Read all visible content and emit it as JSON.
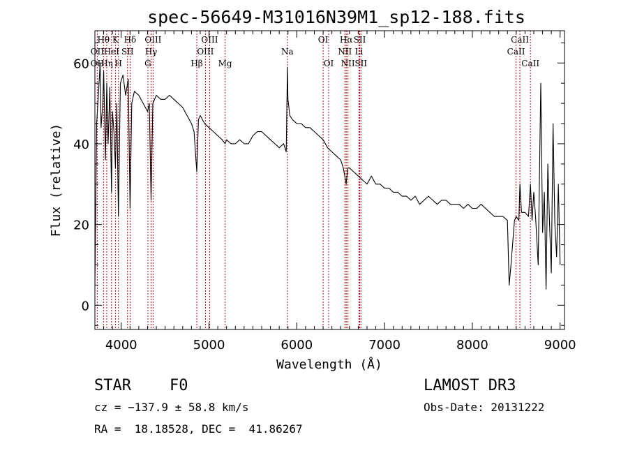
{
  "chart_data": {
    "type": "line",
    "title": "spec-56649-M31016N39M1_sp12-188.fits",
    "xlabel": "Wavelength (Å)",
    "ylabel": "Flux (relative)",
    "xlim": [
      3700,
      9050
    ],
    "ylim": [
      -6,
      68
    ],
    "xticks": [
      4000,
      5000,
      6000,
      7000,
      8000,
      9000
    ],
    "xtick_labels": [
      "4000",
      "5000",
      "6000",
      "7000",
      "8000",
      "9000"
    ],
    "yticks": [
      0,
      20,
      40,
      60
    ],
    "ytick_labels": [
      "0",
      "20",
      "40",
      "60"
    ],
    "grid": false,
    "series": [
      {
        "color": "#000000",
        "x": [
          3700,
          3720,
          3740,
          3760,
          3770,
          3790,
          3800,
          3820,
          3835,
          3850,
          3870,
          3889,
          3900,
          3920,
          3934,
          3950,
          3968,
          3990,
          4020,
          4050,
          4080,
          4101,
          4120,
          4150,
          4200,
          4250,
          4300,
          4320,
          4340,
          4360,
          4400,
          4450,
          4500,
          4550,
          4600,
          4650,
          4700,
          4750,
          4800,
          4830,
          4861,
          4880,
          4900,
          4950,
          5000,
          5050,
          5100,
          5150,
          5183,
          5200,
          5250,
          5300,
          5350,
          5400,
          5450,
          5500,
          5550,
          5600,
          5650,
          5700,
          5750,
          5800,
          5850,
          5880,
          5893,
          5900,
          5920,
          5950,
          6000,
          6050,
          6100,
          6150,
          6200,
          6250,
          6300,
          6350,
          6400,
          6450,
          6500,
          6530,
          6563,
          6580,
          6600,
          6650,
          6700,
          6750,
          6800,
          6850,
          6900,
          6950,
          7000,
          7050,
          7100,
          7150,
          7200,
          7250,
          7300,
          7350,
          7400,
          7450,
          7500,
          7550,
          7600,
          7650,
          7700,
          7750,
          7800,
          7850,
          7900,
          7950,
          8000,
          8050,
          8100,
          8150,
          8200,
          8250,
          8300,
          8350,
          8400,
          8420,
          8440,
          8480,
          8500,
          8530,
          8542,
          8560,
          8600,
          8640,
          8662,
          8680,
          8700,
          8720,
          8750,
          8780,
          8800,
          8820,
          8840,
          8860,
          8880,
          8900,
          8920,
          8940,
          8960,
          8980,
          9000
        ],
        "y": [
          5,
          45,
          52,
          60,
          44,
          50,
          58,
          36,
          55,
          40,
          54,
          28,
          48,
          42,
          34,
          50,
          22,
          55,
          57,
          52,
          56,
          24,
          50,
          53,
          52,
          50,
          48,
          50,
          26,
          50,
          52,
          51,
          51,
          52,
          51,
          50,
          49,
          47,
          45,
          43,
          33,
          46,
          47,
          45,
          44,
          43,
          42,
          41,
          40,
          41,
          40,
          40,
          41,
          40,
          40,
          42,
          43,
          43,
          42,
          41,
          40,
          39,
          40,
          38,
          59,
          51,
          47,
          46,
          45,
          45,
          44,
          44,
          43,
          42,
          41,
          39,
          38,
          37,
          36,
          34,
          30,
          34,
          34,
          33,
          32,
          31,
          30,
          32,
          30,
          30,
          29,
          29,
          28,
          28,
          27,
          27,
          26,
          27,
          25,
          26,
          27,
          26,
          25,
          26,
          26,
          25,
          25,
          25,
          24,
          25,
          24,
          24,
          25,
          24,
          23,
          22,
          22,
          22,
          21,
          5,
          10,
          21,
          22,
          21,
          30,
          23,
          23,
          22,
          30,
          21,
          28,
          22,
          10,
          55,
          18,
          28,
          4,
          35,
          20,
          8,
          45,
          20,
          12,
          30,
          10
        ]
      }
    ],
    "spectral_lines": [
      {
        "label": "Hθ",
        "row": 1,
        "x": 3798
      },
      {
        "label": "K",
        "row": 1,
        "x": 3934
      },
      {
        "label": "Hδ",
        "row": 1,
        "x": 4101
      },
      {
        "label": "OIII",
        "row": 1,
        "x": 4363
      },
      {
        "label": "OIII",
        "row": 1,
        "x": 5007
      },
      {
        "label": "OI",
        "row": 1,
        "x": 6300
      },
      {
        "label": "Hα",
        "row": 1,
        "x": 6563
      },
      {
        "label": "SII",
        "row": 1,
        "x": 6717
      },
      {
        "label": "CaII",
        "row": 1,
        "x": 8542
      },
      {
        "label": "OII",
        "row": 2,
        "x": 3727
      },
      {
        "label": "HeI",
        "row": 2,
        "x": 3889
      },
      {
        "label": "SII",
        "row": 2,
        "x": 4072
      },
      {
        "label": "Hγ",
        "row": 2,
        "x": 4340
      },
      {
        "label": "OIII",
        "row": 2,
        "x": 4959
      },
      {
        "label": "Na",
        "row": 2,
        "x": 5893
      },
      {
        "label": "NII",
        "row": 2,
        "x": 6548
      },
      {
        "label": "Li",
        "row": 2,
        "x": 6708
      },
      {
        "label": "CaII",
        "row": 2,
        "x": 8498
      },
      {
        "label": "OII",
        "row": 3,
        "x": 3727
      },
      {
        "label": "Hη",
        "row": 3,
        "x": 3835
      },
      {
        "label": "H",
        "row": 3,
        "x": 3968
      },
      {
        "label": "G",
        "row": 3,
        "x": 4304
      },
      {
        "label": "Hβ",
        "row": 3,
        "x": 4861
      },
      {
        "label": "Mg",
        "row": 3,
        "x": 5183
      },
      {
        "label": "OI",
        "row": 3,
        "x": 6363
      },
      {
        "label": "NII",
        "row": 3,
        "x": 6583
      },
      {
        "label": "SII",
        "row": 3,
        "x": 6731
      },
      {
        "label": "CaII",
        "row": 3,
        "x": 8662
      }
    ]
  },
  "info": {
    "class": "STAR",
    "subclass": "F0",
    "survey": "LAMOST DR3",
    "cz": "cz = −137.9 ± 58.8 km/s",
    "obs_date": "Obs-Date: 20131222",
    "coords": "RA =  18.18528, DEC =  41.86267"
  },
  "colors": {
    "spectrum": "#000000",
    "line_markers": "#cc0000",
    "axes": "#000000"
  }
}
